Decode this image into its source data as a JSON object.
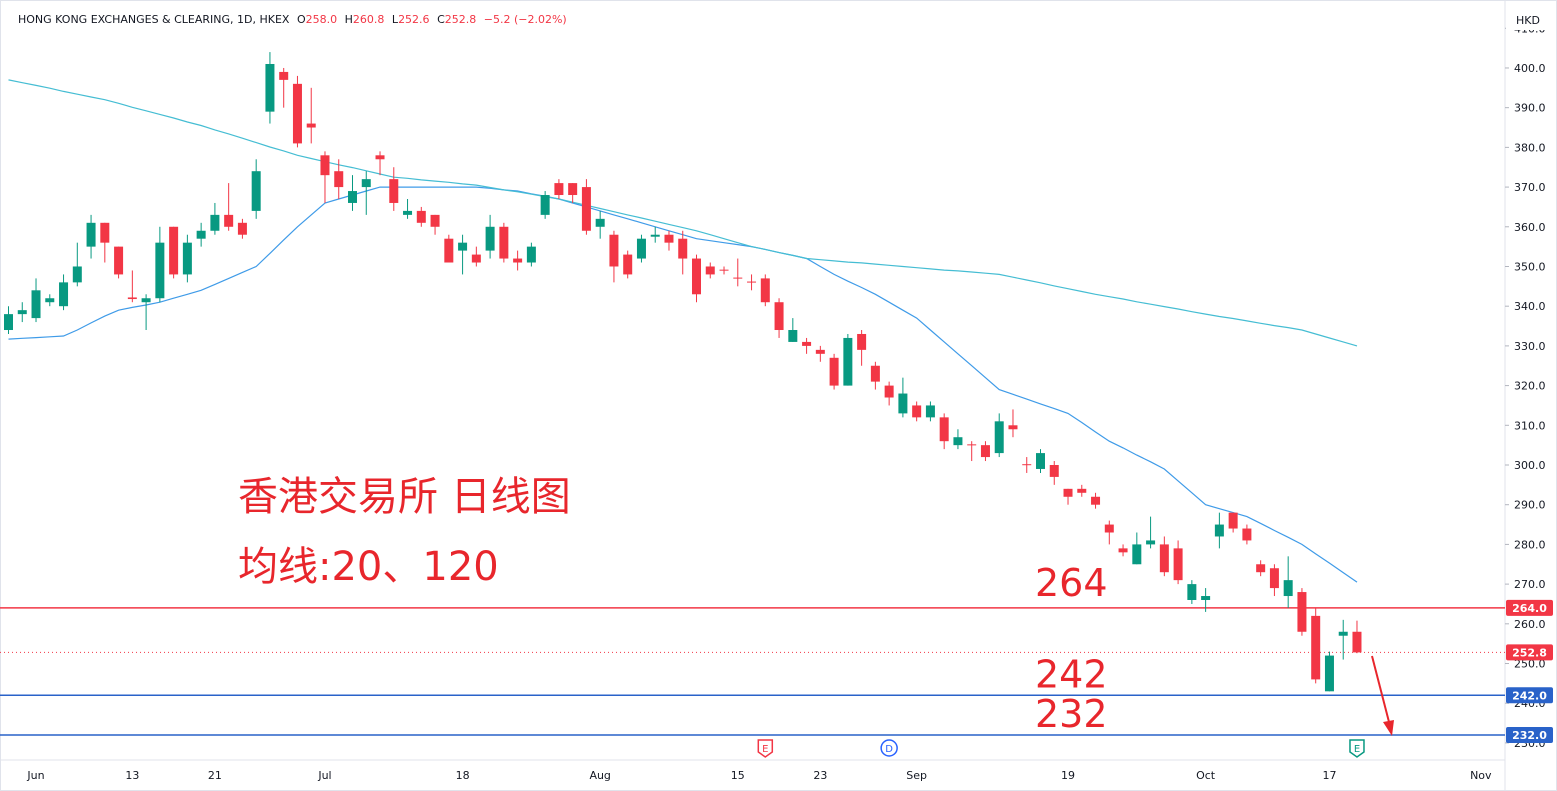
{
  "chart_data": {
    "type": "candlestick",
    "title": "HONG KONG EXCHANGES & CLEARING, 1D, HKEX",
    "ohlc_header": [
      {
        "key": "O",
        "value": 258.0,
        "label": "258.0"
      },
      {
        "key": "H",
        "value": 260.8,
        "label": "260.8"
      },
      {
        "key": "L",
        "value": 252.6,
        "label": "252.6"
      },
      {
        "key": "C",
        "value": 252.8,
        "label": "252.8"
      }
    ],
    "change": {
      "value": -5.2,
      "label": "−5.2"
    },
    "change_pct": {
      "value": -2.02,
      "label": "(−2.02%)"
    },
    "currency": "HKD",
    "up_color": "#089981",
    "down_color": "#f23645",
    "categories": [
      null,
      null,
      "Jun",
      null,
      null,
      null,
      null,
      null,
      null,
      "13",
      null,
      null,
      null,
      null,
      null,
      "21",
      null,
      null,
      null,
      null,
      null,
      null,
      null,
      "Jul",
      null,
      null,
      null,
      null,
      null,
      null,
      null,
      null,
      null,
      "18",
      null,
      null,
      null,
      null,
      null,
      null,
      null,
      null,
      null,
      "Aug",
      null,
      null,
      null,
      null,
      null,
      null,
      null,
      null,
      null,
      "15",
      null,
      null,
      null,
      null,
      null,
      "23",
      null,
      null,
      null,
      null,
      null,
      null,
      "Sep",
      null,
      null,
      null,
      null,
      null,
      null,
      null,
      null,
      null,
      null,
      "19",
      null,
      null,
      null,
      null,
      null,
      null,
      null,
      null,
      null,
      "Oct",
      null,
      null,
      null,
      null,
      null,
      null,
      null,
      null,
      "17",
      null,
      null,
      null,
      null,
      null,
      null,
      null,
      null,
      null,
      null,
      "Nov"
    ],
    "open": [
      334,
      338,
      337,
      341,
      340,
      346,
      355,
      361,
      355,
      342.2,
      341,
      342,
      360,
      348,
      357,
      359,
      363,
      361,
      364,
      389,
      399,
      396,
      386,
      378,
      374,
      366,
      370,
      378,
      372,
      363,
      364,
      363,
      357,
      354,
      353,
      354,
      360,
      352,
      351,
      363,
      371,
      371,
      370,
      360,
      358,
      353,
      352,
      357.5,
      358,
      357,
      352,
      350,
      349.2,
      347.2,
      346.2,
      347,
      341,
      331,
      331,
      329,
      327,
      320,
      333,
      325,
      320,
      313,
      315,
      312,
      312,
      305,
      305.2,
      305,
      303,
      310,
      300.2,
      299,
      300,
      294,
      294,
      292,
      285,
      279,
      275,
      280,
      280,
      279,
      266,
      266,
      282,
      288,
      284,
      275,
      274,
      267,
      268,
      262,
      243,
      257,
      258.0,
      null,
      null,
      null,
      null,
      null,
      null,
      null,
      null,
      null
    ],
    "high": [
      340,
      341,
      347,
      343,
      348,
      356,
      363,
      361,
      355,
      349,
      343,
      360,
      360,
      358,
      361,
      366,
      371,
      362,
      377,
      404,
      400,
      398,
      395,
      379,
      377,
      373,
      374,
      379,
      375,
      367,
      365,
      363,
      358,
      358,
      355,
      363,
      361,
      354,
      356,
      369,
      372,
      371,
      372,
      364,
      359,
      354,
      358,
      360,
      359,
      359,
      353,
      351,
      350,
      352,
      348,
      348,
      342,
      337,
      332,
      330,
      328,
      333,
      334,
      326,
      321,
      322,
      316,
      316,
      313,
      309,
      306,
      306,
      313,
      314,
      302,
      304,
      301,
      294,
      295,
      293,
      286,
      280,
      283,
      287,
      282,
      281,
      271,
      269,
      288,
      288,
      285,
      276,
      275,
      277,
      269,
      264,
      253,
      261,
      260.8,
      null,
      null,
      null,
      null,
      null,
      null,
      null,
      null,
      null
    ],
    "low": [
      333,
      336,
      336,
      340,
      339,
      345,
      352,
      351,
      347,
      341,
      334,
      341,
      347,
      346,
      355,
      358,
      359,
      357,
      362,
      386,
      390,
      380,
      381,
      366,
      367,
      364,
      363,
      373,
      364,
      362,
      360,
      358,
      351,
      348,
      350,
      352,
      351,
      349,
      350,
      362,
      367,
      366,
      358,
      357,
      346,
      347,
      351,
      356,
      354,
      348,
      341,
      347,
      348,
      345,
      344,
      340,
      332,
      331,
      328,
      326,
      319,
      320,
      325,
      319,
      315,
      312,
      311,
      311,
      304,
      304,
      301,
      301,
      302,
      307,
      298,
      298,
      295,
      290,
      292,
      289,
      280,
      277,
      275,
      279,
      272,
      270,
      265,
      263,
      279,
      283,
      280,
      272,
      267,
      264,
      257,
      245,
      243,
      251,
      252.6,
      null,
      null,
      null,
      null,
      null,
      null,
      null,
      null,
      null
    ],
    "close": [
      338,
      339,
      344,
      342,
      346,
      350,
      361,
      356,
      348,
      341.8,
      342,
      356,
      348,
      356,
      359,
      363,
      360,
      358,
      374,
      401,
      397,
      381,
      385,
      373,
      370,
      369,
      372,
      377,
      366,
      364,
      361,
      360,
      351,
      356,
      351,
      360,
      352,
      351,
      355,
      368,
      368,
      368,
      359,
      362,
      350,
      348,
      357,
      358,
      356,
      352,
      343,
      348,
      349,
      347,
      346,
      341,
      334,
      334,
      330,
      328,
      320,
      332,
      329,
      321,
      317,
      318,
      312,
      315,
      306,
      307,
      305,
      302,
      311,
      309,
      300,
      303,
      297,
      292,
      293,
      290,
      283,
      278,
      280,
      281,
      273,
      271,
      270,
      267,
      285,
      284,
      281,
      273,
      269,
      271,
      258,
      246,
      252,
      258,
      252.8,
      null,
      null,
      null,
      null,
      null,
      null,
      null,
      null,
      null
    ],
    "series": [
      {
        "name": "MA 20",
        "color": "#3f9be8",
        "values": [
          331.7,
          331.9,
          332.1,
          332.3,
          332.5,
          334,
          335.8,
          337.5,
          339,
          339.7,
          340.3,
          341,
          342,
          343,
          344,
          345.5,
          347,
          348.5,
          350,
          353.3,
          356.7,
          360,
          363,
          366,
          367,
          368,
          369,
          370,
          370,
          370,
          370,
          370,
          370,
          370,
          370,
          369.7,
          369.3,
          369,
          368.3,
          367.7,
          367,
          366,
          365,
          364,
          363,
          362,
          361,
          360,
          359,
          358,
          357,
          356.5,
          356,
          355.5,
          355,
          354.3,
          353.5,
          352.8,
          352,
          350,
          348,
          346.3,
          344.7,
          343,
          341,
          339,
          337,
          334,
          331,
          328,
          325,
          322,
          319,
          317.8,
          316.6,
          315.4,
          314.2,
          313,
          310.7,
          308.3,
          306,
          304.3,
          302.5,
          300.8,
          299,
          296,
          293,
          290,
          289,
          288,
          287,
          285.3,
          283.5,
          281.8,
          280,
          277.6,
          275.3,
          272.9,
          270.5,
          null,
          null,
          null,
          null,
          null,
          null,
          null,
          null,
          null
        ]
      },
      {
        "name": "MA 120",
        "color": "#45bdd3",
        "values": [
          397,
          396.3,
          395.6,
          394.9,
          394.1,
          393.4,
          392.7,
          392,
          391.1,
          390.1,
          389.2,
          388.3,
          387.4,
          386.4,
          385.5,
          384.4,
          383.4,
          382.3,
          381.2,
          380.1,
          379.1,
          378,
          377.2,
          376.4,
          375.6,
          374.9,
          374.1,
          373.3,
          372.5,
          372.2,
          371.8,
          371.5,
          371.2,
          370.8,
          370.5,
          369.9,
          369.3,
          368.8,
          368.2,
          367.6,
          367,
          366.2,
          365.4,
          364.6,
          363.8,
          363,
          362.2,
          361.4,
          360.6,
          359.8,
          359,
          358,
          357,
          356,
          355,
          354.3,
          353.5,
          352.8,
          352,
          351.7,
          351.4,
          351.1,
          350.9,
          350.6,
          350.3,
          350,
          349.7,
          349.4,
          349.1,
          348.9,
          348.6,
          348.3,
          348,
          347.3,
          346.6,
          345.9,
          345.1,
          344.4,
          343.7,
          343,
          342.4,
          341.8,
          341.1,
          340.5,
          339.9,
          339.3,
          338.6,
          338,
          337.4,
          336.9,
          336.3,
          335.7,
          335.1,
          334.6,
          334,
          333,
          332,
          331,
          330,
          null,
          null,
          null,
          null,
          null,
          null,
          null,
          null,
          null
        ]
      }
    ],
    "ylim": [
      225.7,
      414.6
    ],
    "yticks": [
      {
        "value": 230,
        "label": "230.0"
      },
      {
        "value": 240,
        "label": "240.0"
      },
      {
        "value": 250,
        "label": "250.0"
      },
      {
        "value": 260,
        "label": "260.0"
      },
      {
        "value": 270,
        "label": "270.0"
      },
      {
        "value": 280,
        "label": "280.0"
      },
      {
        "value": 290,
        "label": "290.0"
      },
      {
        "value": 300,
        "label": "300.0"
      },
      {
        "value": 310,
        "label": "310.0"
      },
      {
        "value": 320,
        "label": "320.0"
      },
      {
        "value": 330,
        "label": "330.0"
      },
      {
        "value": 340,
        "label": "340.0"
      },
      {
        "value": 350,
        "label": "350.0"
      },
      {
        "value": 360,
        "label": "360.0"
      },
      {
        "value": 370,
        "label": "370.0"
      },
      {
        "value": 380,
        "label": "380.0"
      },
      {
        "value": 390,
        "label": "390.0"
      },
      {
        "value": 400,
        "label": "400.0"
      },
      {
        "value": 410,
        "label": "410.0"
      }
    ],
    "grid": false,
    "levels": [
      {
        "value": 264,
        "label": "264.0",
        "note": "264",
        "color": "#f23645"
      },
      {
        "value": 242,
        "label": "242.0",
        "note": "242",
        "color": "#2962c9"
      },
      {
        "value": 232,
        "label": "232.0",
        "note": "232",
        "color": "#2962c9"
      }
    ],
    "last_price": {
      "value": 252.8,
      "label": "252.8",
      "color": "#f23645"
    },
    "events": [
      {
        "label": "E",
        "at": 55,
        "color": "#f23645"
      },
      {
        "label": "D",
        "at": 64,
        "color": "#2962ff"
      },
      {
        "label": "E",
        "at": 98,
        "color": "#089981"
      }
    ],
    "annotations": [
      "香港交易所 日线图",
      "均线:20、120"
    ]
  }
}
